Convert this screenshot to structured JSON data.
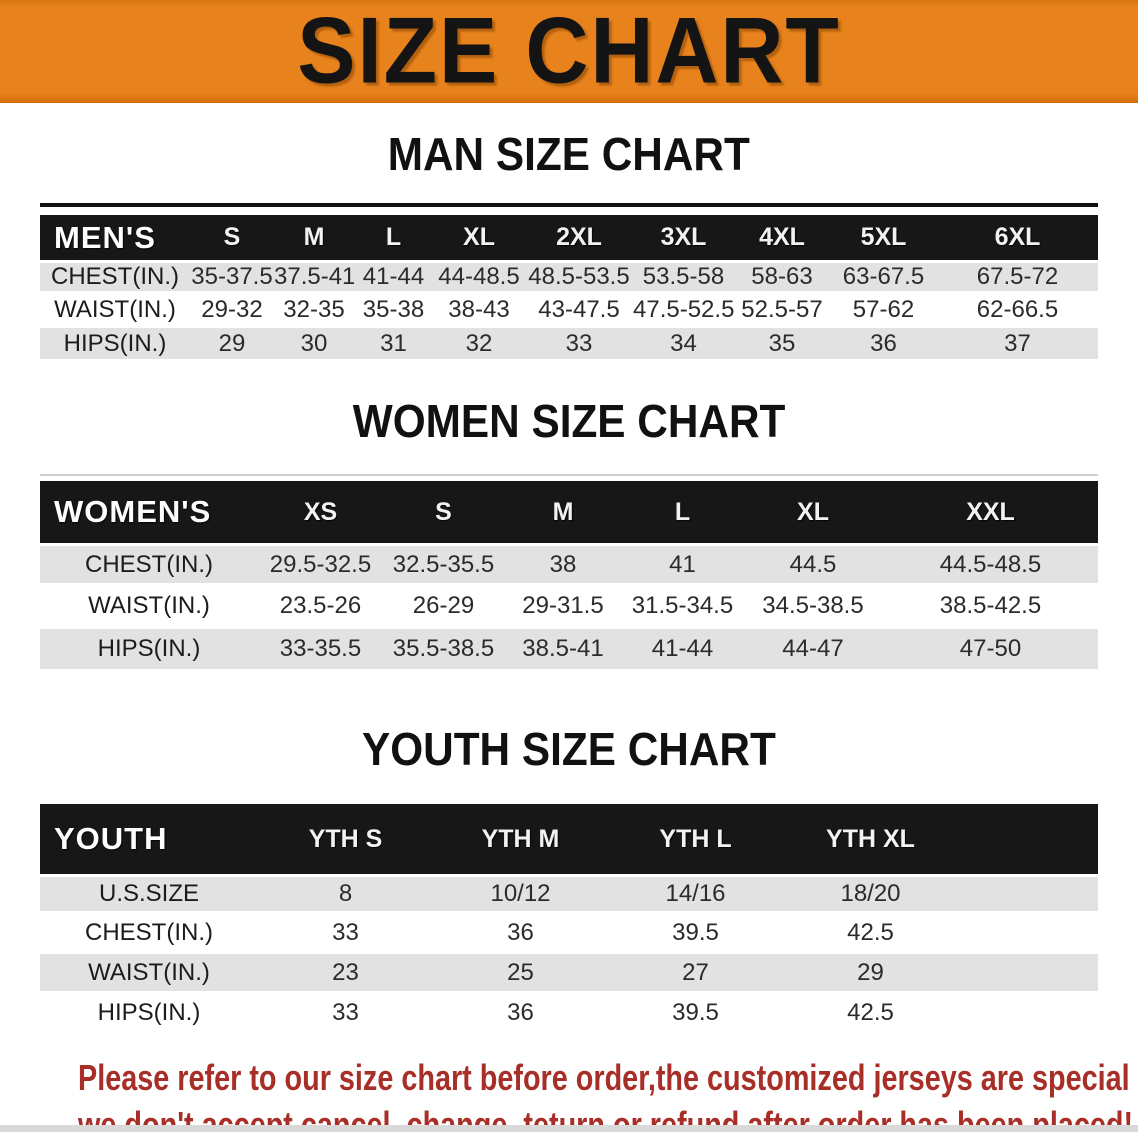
{
  "banner": {
    "title": "SIZE CHART",
    "bg_color": "#e8821c",
    "text_color": "#141414"
  },
  "colors": {
    "table_header_bg": "#171717",
    "row_stripe": "#e2e2e2",
    "disclaimer_text": "#a72f27"
  },
  "sections": [
    {
      "heading": "MAN SIZE CHART",
      "table": {
        "label": "MEN'S",
        "columns": [
          "S",
          "M",
          "L",
          "XL",
          "2XL",
          "3XL",
          "4XL",
          "5XL",
          "6XL"
        ],
        "rows": [
          {
            "label": "CHEST(IN.)",
            "values": [
              "35-37.5",
              "37.5-41",
              "41-44",
              "44-48.5",
              "48.5-53.5",
              "53.5-58",
              "58-63",
              "63-67.5",
              "67.5-72"
            ]
          },
          {
            "label": "WAIST(IN.)",
            "values": [
              "29-32",
              "32-35",
              "35-38",
              "38-43",
              "43-47.5",
              "47.5-52.5",
              "52.5-57",
              "57-62",
              "62-66.5"
            ]
          },
          {
            "label": "HIPS(IN.)",
            "values": [
              "29",
              "30",
              "31",
              "32",
              "33",
              "34",
              "35",
              "36",
              "37"
            ]
          }
        ]
      }
    },
    {
      "heading": "WOMEN SIZE CHART",
      "table": {
        "label": "WOMEN'S",
        "columns": [
          "XS",
          "S",
          "M",
          "L",
          "XL",
          "XXL"
        ],
        "rows": [
          {
            "label": "CHEST(IN.)",
            "values": [
              "29.5-32.5",
              "32.5-35.5",
              "38",
              "41",
              "44.5",
              "44.5-48.5"
            ]
          },
          {
            "label": "WAIST(IN.)",
            "values": [
              "23.5-26",
              "26-29",
              "29-31.5",
              "31.5-34.5",
              "34.5-38.5",
              "38.5-42.5"
            ]
          },
          {
            "label": "HIPS(IN.)",
            "values": [
              "33-35.5",
              "35.5-38.5",
              "38.5-41",
              "41-44",
              "44-47",
              "47-50"
            ]
          }
        ]
      }
    },
    {
      "heading": "YOUTH SIZE CHART",
      "table": {
        "label": "YOUTH",
        "columns": [
          "YTH S",
          "YTH M",
          "YTH L",
          "YTH XL"
        ],
        "rows": [
          {
            "label": "U.S.SIZE",
            "values": [
              "8",
              "10/12",
              "14/16",
              "18/20"
            ]
          },
          {
            "label": "CHEST(IN.)",
            "values": [
              "33",
              "36",
              "39.5",
              "42.5"
            ]
          },
          {
            "label": "WAIST(IN.)",
            "values": [
              "23",
              "25",
              "27",
              "29"
            ]
          },
          {
            "label": "HIPS(IN.)",
            "values": [
              "33",
              "36",
              "39.5",
              "42.5"
            ]
          }
        ]
      }
    }
  ],
  "disclaimer": {
    "line1": "Please refer to our size chart before order,the customized jerseys are special products,",
    "line2": "we don't accept cancel, change, teturn or refund after order has been placed!"
  }
}
